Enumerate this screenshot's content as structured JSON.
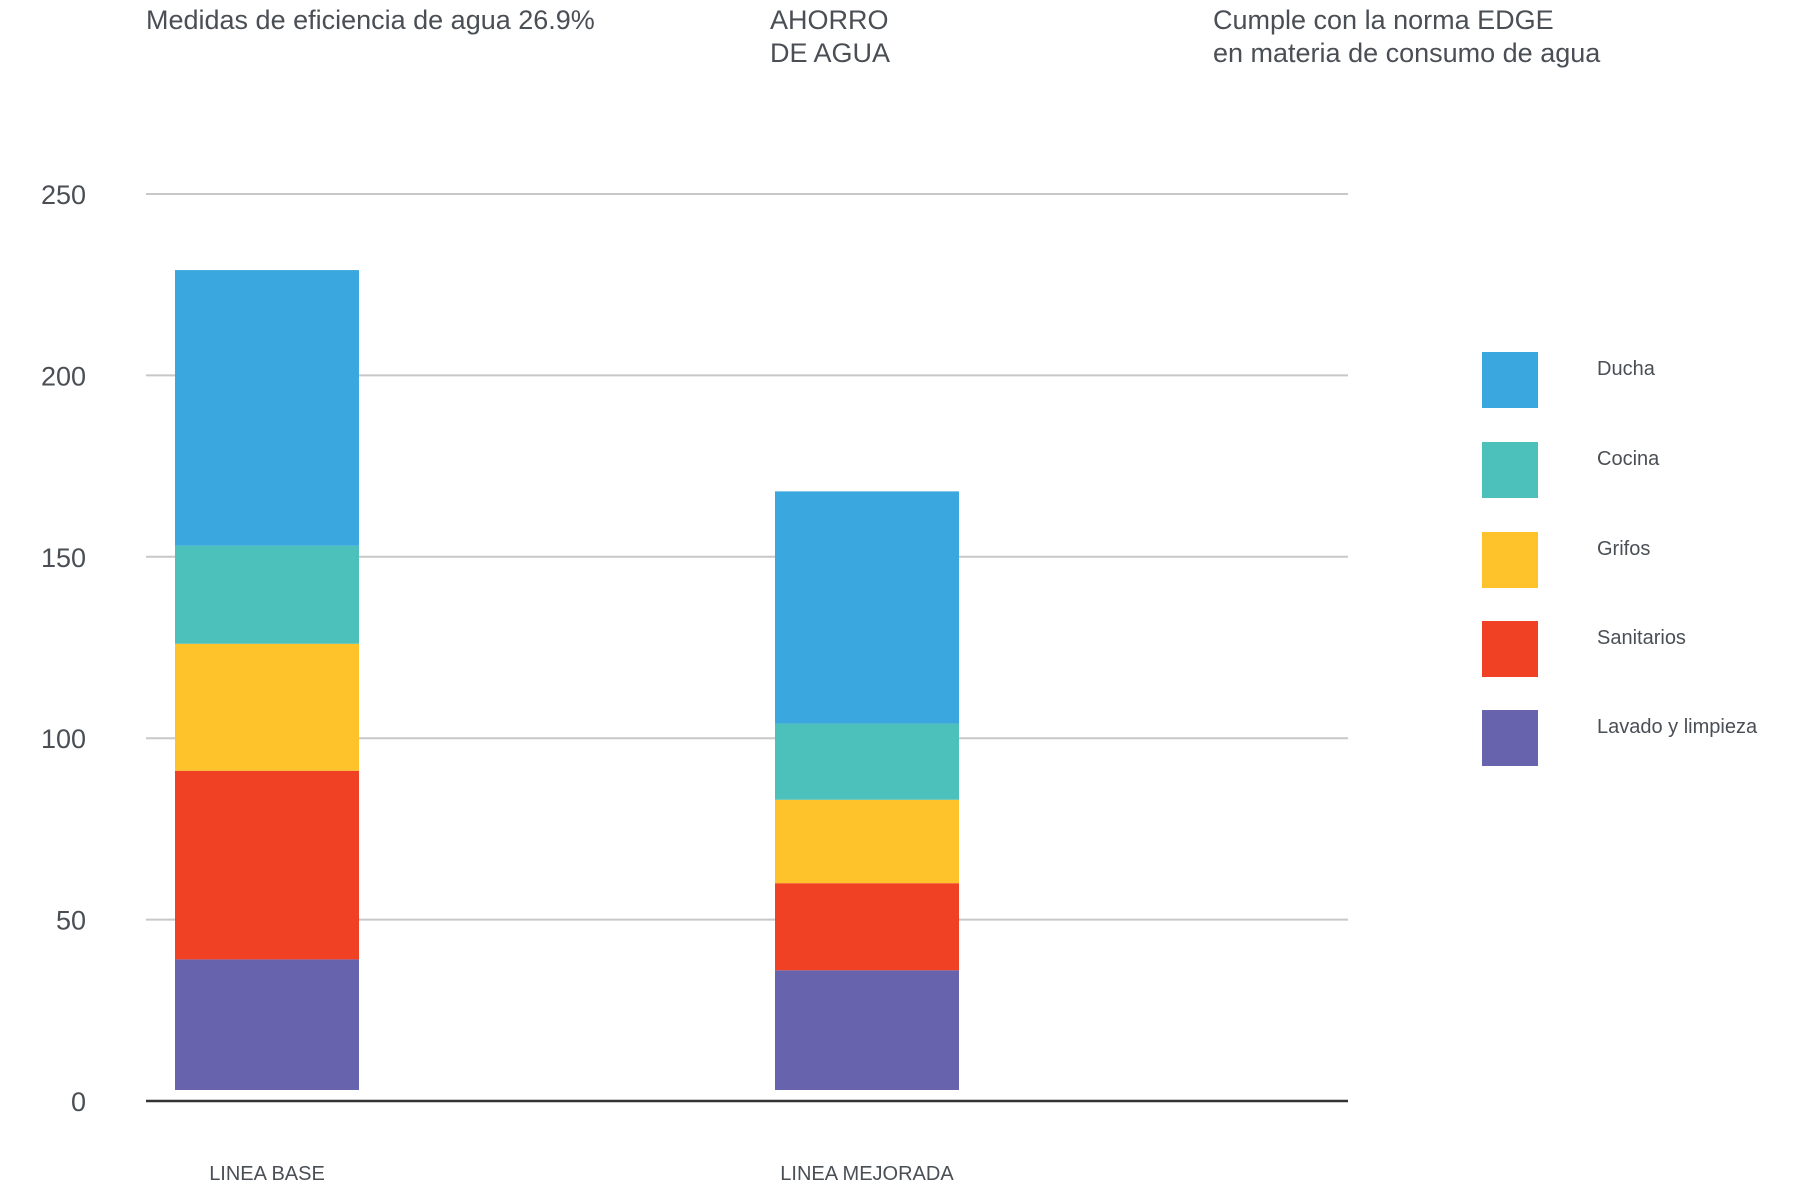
{
  "header": {
    "efficiency": "Medidas de eficiencia de agua 26.9%",
    "savings": "AHORRO\nDE AGUA",
    "compliance": "Cumple con la norma EDGE\nen materia de consumo de agua"
  },
  "colors": {
    "grid": "#c8c8c8",
    "baseline": "#333333",
    "Ducha": "#3aa7de",
    "Cocina": "#4cc1bc",
    "Grifos": "#fec32b",
    "Sanitarios": "#f04124",
    "Lavado y limpieza": "#6763ad"
  },
  "chart_data": {
    "type": "bar",
    "stacked": true,
    "categories": [
      "LINEA BASE",
      "LINEA MEJORADA"
    ],
    "series": [
      {
        "name": "Lavado y limpieza",
        "values": [
          36,
          33
        ]
      },
      {
        "name": "Sanitarios",
        "values": [
          52,
          24
        ]
      },
      {
        "name": "Grifos",
        "values": [
          35,
          23
        ]
      },
      {
        "name": "Cocina",
        "values": [
          27,
          21
        ]
      },
      {
        "name": "Ducha",
        "values": [
          76,
          64
        ]
      }
    ],
    "yticks": [
      0,
      50,
      100,
      150,
      200,
      250
    ],
    "ylim": [
      0,
      250
    ],
    "grid": true,
    "legend_position": "right"
  }
}
